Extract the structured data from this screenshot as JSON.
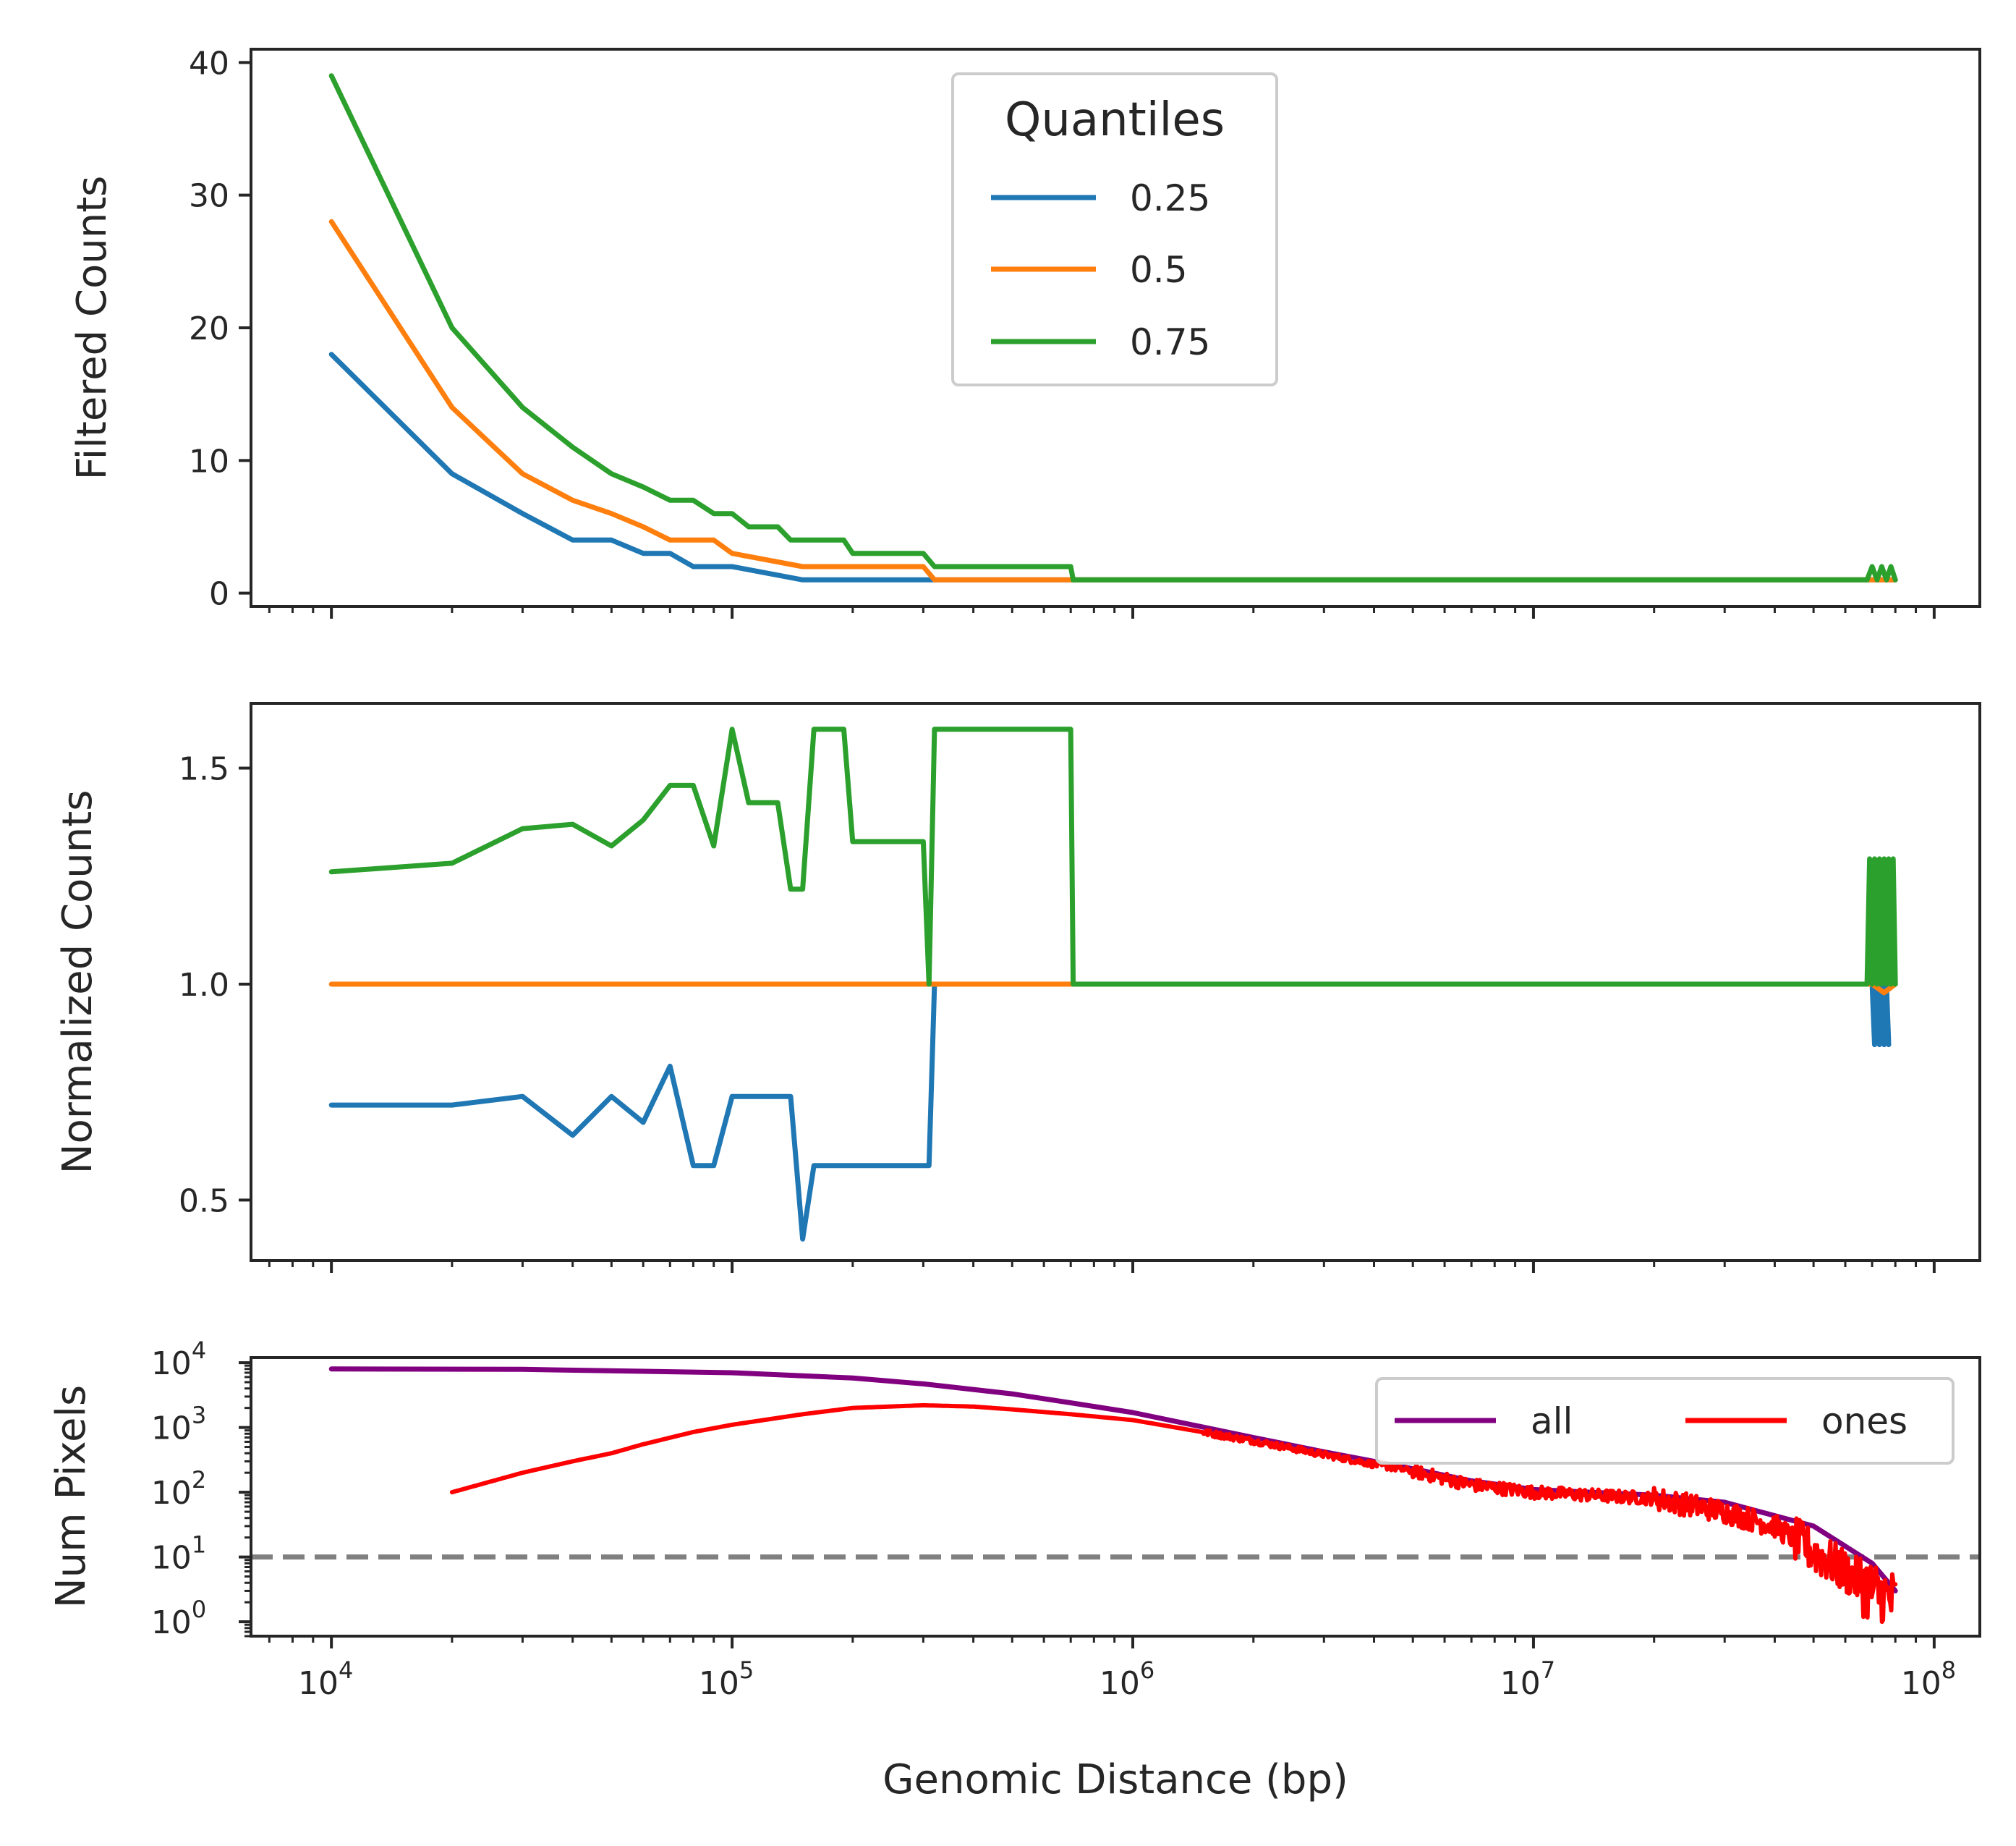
{
  "chart_data": [
    {
      "type": "line",
      "ylabel": "Filtered Counts",
      "xscale": "log",
      "xlim": [
        6300,
        130000000
      ],
      "ylim": [
        -1,
        41
      ],
      "yticks": [
        0,
        10,
        20,
        30,
        40
      ],
      "ytick_labels": [
        "0",
        "10",
        "20",
        "30",
        "40"
      ],
      "legend": {
        "title": "Quantiles",
        "placement": "upper-center"
      },
      "series": [
        {
          "name": "0.25",
          "color": "#1f77b4",
          "x": [
            10000,
            20000,
            30000,
            40000,
            50000,
            60000,
            70000,
            80000,
            90000,
            100000,
            150000,
            200000,
            300000,
            700000,
            1000000,
            10000000,
            70000000,
            80000000
          ],
          "y": [
            18,
            9,
            6,
            4,
            4,
            3,
            3,
            2,
            2,
            2,
            1,
            1,
            1,
            1,
            1,
            1,
            1,
            1
          ]
        },
        {
          "name": "0.5",
          "color": "#ff7f0e",
          "x": [
            10000,
            20000,
            30000,
            40000,
            50000,
            60000,
            70000,
            80000,
            90000,
            100000,
            150000,
            200000,
            300000,
            320000,
            700000,
            1000000,
            10000000,
            80000000
          ],
          "y": [
            28,
            14,
            9,
            7,
            6,
            5,
            4,
            4,
            4,
            3,
            2,
            2,
            2,
            1,
            1,
            1,
            1,
            1
          ]
        },
        {
          "name": "0.75",
          "color": "#2ca02c",
          "x": [
            10000,
            20000,
            30000,
            40000,
            50000,
            60000,
            70000,
            80000,
            90000,
            100000,
            110000,
            130000,
            140000,
            190000,
            200000,
            300000,
            320000,
            700000,
            710000,
            1000000,
            10000000,
            68000000,
            70000000,
            72000000,
            74000000,
            76000000,
            78000000,
            80000000
          ],
          "y": [
            39,
            20,
            14,
            11,
            9,
            8,
            7,
            7,
            6,
            6,
            5,
            5,
            4,
            4,
            3,
            3,
            2,
            2,
            1,
            1,
            1,
            1,
            2,
            1,
            2,
            1,
            2,
            1
          ]
        }
      ]
    },
    {
      "type": "line",
      "ylabel": "Normalized Counts",
      "xscale": "log",
      "xlim": [
        6300,
        130000000
      ],
      "ylim": [
        0.36,
        1.65
      ],
      "yticks": [
        0.5,
        1.0,
        1.5
      ],
      "ytick_labels": [
        "0.5",
        "1.0",
        "1.5"
      ],
      "series": [
        {
          "name": "0.25",
          "color": "#1f77b4",
          "x": [
            10000,
            20000,
            30000,
            40000,
            50000,
            60000,
            70000,
            80000,
            90000,
            100000,
            140000,
            150000,
            160000,
            310000,
            320000,
            70000000,
            71000000,
            72000000,
            73000000,
            74000000,
            75000000,
            76000000,
            77000000
          ],
          "y": [
            0.72,
            0.72,
            0.74,
            0.65,
            0.74,
            0.68,
            0.81,
            0.58,
            0.58,
            0.74,
            0.74,
            0.41,
            0.58,
            0.58,
            1.0,
            1.0,
            0.86,
            1.0,
            0.86,
            1.0,
            0.86,
            1.0,
            0.86
          ]
        },
        {
          "name": "0.5",
          "color": "#ff7f0e",
          "x": [
            10000,
            100000,
            1000000,
            10000000,
            70000000,
            75000000,
            80000000
          ],
          "y": [
            1.0,
            1.0,
            1.0,
            1.0,
            1.0,
            0.98,
            1.0
          ]
        },
        {
          "name": "0.75",
          "color": "#2ca02c",
          "x": [
            10000,
            20000,
            30000,
            40000,
            50000,
            60000,
            70000,
            80000,
            90000,
            100000,
            110000,
            130000,
            140000,
            150000,
            160000,
            190000,
            200000,
            300000,
            310000,
            320000,
            700000,
            710000,
            1000000,
            10000000,
            68000000,
            69000000,
            70000000,
            71000000,
            72000000,
            73000000,
            74000000,
            75000000,
            76000000,
            77000000,
            78000000,
            79000000,
            80000000
          ],
          "y": [
            1.26,
            1.28,
            1.36,
            1.37,
            1.32,
            1.38,
            1.46,
            1.46,
            1.32,
            1.59,
            1.42,
            1.42,
            1.22,
            1.22,
            1.59,
            1.59,
            1.33,
            1.33,
            1.0,
            1.59,
            1.59,
            1.0,
            1.0,
            1.0,
            1.0,
            1.29,
            1.0,
            1.29,
            1.0,
            1.29,
            1.0,
            1.29,
            1.0,
            1.29,
            1.0,
            1.29,
            1.0
          ]
        }
      ]
    },
    {
      "type": "line",
      "ylabel": "Num Pixels",
      "xlabel": "Genomic Distance (bp)",
      "xscale": "log",
      "yscale": "log",
      "xlim": [
        6300,
        130000000
      ],
      "ylim": [
        0.6,
        12000
      ],
      "yticks": [
        1,
        10,
        100,
        1000,
        10000
      ],
      "ytick_labels": [
        [
          "10",
          "0"
        ],
        [
          "10",
          "1"
        ],
        [
          "10",
          "2"
        ],
        [
          "10",
          "3"
        ],
        [
          "10",
          "4"
        ]
      ],
      "xticks": [
        10000,
        100000,
        1000000,
        10000000,
        100000000
      ],
      "xtick_labels": [
        [
          "10",
          "4"
        ],
        [
          "10",
          "5"
        ],
        [
          "10",
          "6"
        ],
        [
          "10",
          "7"
        ],
        [
          "10",
          "8"
        ]
      ],
      "reference_line": {
        "y": 10,
        "color": "#808080",
        "style": "dashed"
      },
      "legend": {
        "placement": "upper-right",
        "columns": 2
      },
      "series": [
        {
          "name": "all",
          "color": "#800080",
          "x": [
            10000,
            30000,
            100000,
            200000,
            300000,
            500000,
            700000,
            1000000,
            2000000,
            3000000,
            4000000,
            5000000,
            7000000,
            10000000,
            20000000,
            30000000,
            50000000,
            70000000,
            80000000
          ],
          "y": [
            8000,
            7900,
            7000,
            5800,
            4700,
            3300,
            2400,
            1700,
            700,
            420,
            300,
            230,
            150,
            110,
            90,
            70,
            30,
            8,
            3
          ]
        },
        {
          "name": "ones",
          "color": "#ff0000",
          "noisy": true,
          "x": [
            20000,
            30000,
            40000,
            50000,
            60000,
            80000,
            100000,
            150000,
            200000,
            300000,
            400000,
            500000,
            700000,
            1000000,
            2000000,
            3000000,
            4000000,
            5000000,
            7000000,
            10000000,
            20000000,
            30000000,
            40000000,
            50000000,
            60000000,
            70000000,
            80000000
          ],
          "y": [
            100,
            200,
            300,
            400,
            550,
            850,
            1100,
            1600,
            2000,
            2200,
            2100,
            1900,
            1600,
            1300,
            620,
            380,
            270,
            210,
            130,
            100,
            80,
            50,
            30,
            12,
            6,
            3,
            2
          ]
        }
      ]
    }
  ]
}
